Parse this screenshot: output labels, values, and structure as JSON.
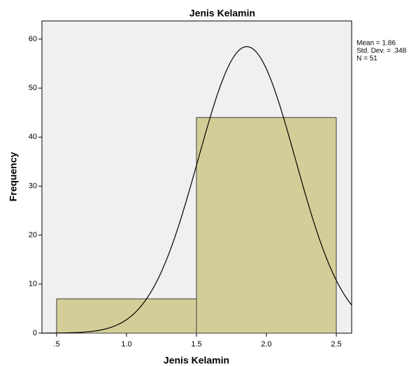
{
  "chart_data": {
    "type": "histogram",
    "title": "Jenis Kelamin",
    "x_label": "Jenis Kelamin",
    "y_label": "Frequency",
    "bins": [
      0.5,
      1.5,
      2.5
    ],
    "values": [
      7,
      44
    ],
    "color": "#d3ce97",
    "xlim": [
      0.395,
      2.61
    ],
    "ylim": [
      0,
      63.7
    ],
    "xticks": [
      {
        "value": 0.5,
        "label": ".5"
      },
      {
        "value": 1.0,
        "label": "1.0"
      },
      1.5,
      {
        "value": 2.0,
        "label": "2.0"
      },
      2.5
    ],
    "yticks": [
      0,
      10,
      20,
      30,
      40,
      50,
      60
    ],
    "stats": [
      {
        "label": "Mean = 1.86",
        "value": 1.86
      },
      {
        "label": "Std. Dev. = .348",
        "value": 0.348
      },
      {
        "label": "N = 51",
        "value": 51
      }
    ]
  }
}
